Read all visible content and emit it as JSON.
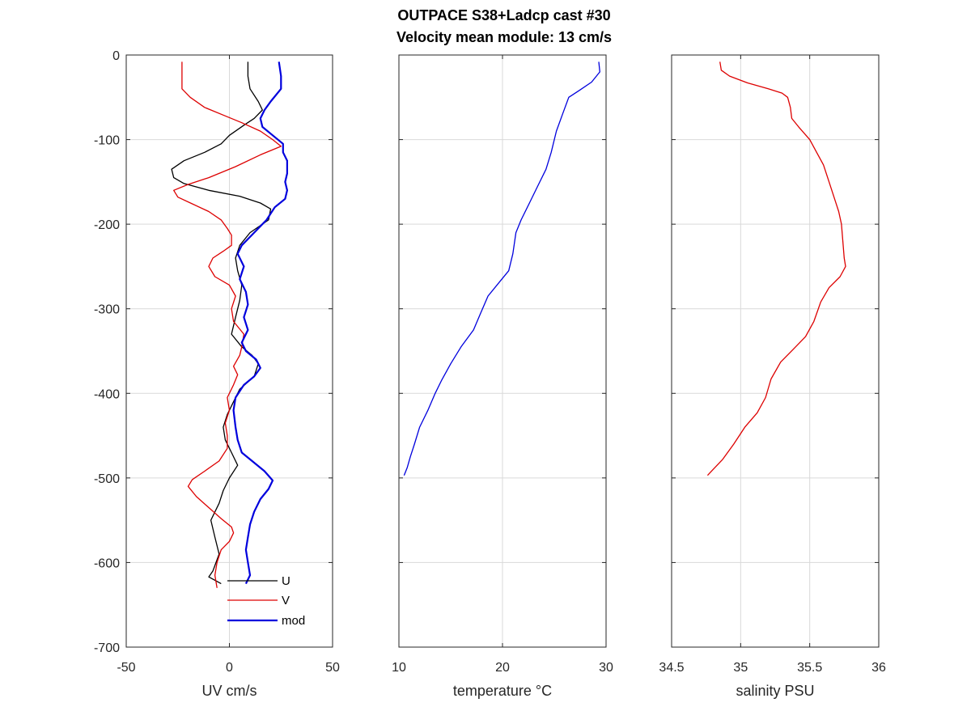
{
  "figure": {
    "title_line1": "OUTPACE S38+Ladcp cast #30",
    "title_line2": "Velocity mean module:  13 cm/s"
  },
  "chart_data": [
    {
      "type": "line",
      "xlabel": "UV cm/s",
      "ylabel": "",
      "xlim": [
        -50,
        50
      ],
      "ylim": [
        -700,
        0
      ],
      "xticks": [
        -50,
        0,
        50
      ],
      "yticks": [
        -700,
        -600,
        -500,
        -400,
        -300,
        -200,
        -100,
        0
      ],
      "grid": true,
      "legend": "bottom-right",
      "series": [
        {
          "name": "U",
          "color": "#000000",
          "width": 1.3,
          "points": [
            [
              9,
              -8
            ],
            [
              9,
              -25
            ],
            [
              10,
              -40
            ],
            [
              14,
              -55
            ],
            [
              16,
              -65
            ],
            [
              12,
              -75
            ],
            [
              7,
              -83
            ],
            [
              0,
              -95
            ],
            [
              -4,
              -105
            ],
            [
              -12,
              -115
            ],
            [
              -22,
              -125
            ],
            [
              -28,
              -135
            ],
            [
              -27,
              -145
            ],
            [
              -22,
              -152
            ],
            [
              -10,
              -160
            ],
            [
              5,
              -167
            ],
            [
              15,
              -175
            ],
            [
              20,
              -182
            ],
            [
              19,
              -195
            ],
            [
              10,
              -210
            ],
            [
              5,
              -225
            ],
            [
              3,
              -240
            ],
            [
              4,
              -255
            ],
            [
              6,
              -272
            ],
            [
              5,
              -290
            ],
            [
              3,
              -310
            ],
            [
              1,
              -330
            ],
            [
              6,
              -345
            ],
            [
              11,
              -355
            ],
            [
              14,
              -365
            ],
            [
              12,
              -380
            ],
            [
              5,
              -395
            ],
            [
              2,
              -410
            ],
            [
              -1,
              -425
            ],
            [
              -3,
              -440
            ],
            [
              -2,
              -455
            ],
            [
              1,
              -470
            ],
            [
              4,
              -485
            ],
            [
              0,
              -500
            ],
            [
              -3,
              -515
            ],
            [
              -5,
              -530
            ],
            [
              -9,
              -550
            ],
            [
              -7,
              -570
            ],
            [
              -5,
              -590
            ],
            [
              -8,
              -610
            ],
            [
              -10,
              -617
            ],
            [
              -4,
              -625
            ]
          ]
        },
        {
          "name": "V",
          "color": "#dd0000",
          "width": 1.3,
          "points": [
            [
              -23,
              -8
            ],
            [
              -23,
              -25
            ],
            [
              -23,
              -40
            ],
            [
              -19,
              -50
            ],
            [
              -12,
              -62
            ],
            [
              -2,
              -72
            ],
            [
              6,
              -80
            ],
            [
              15,
              -90
            ],
            [
              21,
              -100
            ],
            [
              25,
              -108
            ],
            [
              15,
              -118
            ],
            [
              3,
              -132
            ],
            [
              -10,
              -145
            ],
            [
              -20,
              -153
            ],
            [
              -27,
              -160
            ],
            [
              -25,
              -168
            ],
            [
              -18,
              -176
            ],
            [
              -10,
              -185
            ],
            [
              -4,
              -195
            ],
            [
              -1,
              -205
            ],
            [
              1,
              -213
            ],
            [
              1,
              -225
            ],
            [
              -3,
              -232
            ],
            [
              -8,
              -240
            ],
            [
              -10,
              -250
            ],
            [
              -7,
              -262
            ],
            [
              0,
              -272
            ],
            [
              3,
              -285
            ],
            [
              1,
              -300
            ],
            [
              2,
              -315
            ],
            [
              7,
              -330
            ],
            [
              6,
              -345
            ],
            [
              5,
              -355
            ],
            [
              2,
              -368
            ],
            [
              4,
              -378
            ],
            [
              2,
              -390
            ],
            [
              -1,
              -405
            ],
            [
              0,
              -420
            ],
            [
              -2,
              -435
            ],
            [
              -1,
              -450
            ],
            [
              -1,
              -465
            ],
            [
              -5,
              -480
            ],
            [
              -12,
              -492
            ],
            [
              -18,
              -502
            ],
            [
              -20,
              -510
            ],
            [
              -16,
              -522
            ],
            [
              -10,
              -535
            ],
            [
              -4,
              -548
            ],
            [
              1,
              -558
            ],
            [
              2,
              -565
            ],
            [
              0,
              -575
            ],
            [
              -4,
              -585
            ],
            [
              -6,
              -600
            ],
            [
              -7,
              -615
            ],
            [
              -6,
              -630
            ]
          ]
        },
        {
          "name": "mod",
          "color": "#0000dd",
          "width": 2.2,
          "points": [
            [
              24,
              -8
            ],
            [
              25,
              -25
            ],
            [
              25,
              -40
            ],
            [
              20,
              -55
            ],
            [
              17,
              -65
            ],
            [
              15,
              -75
            ],
            [
              16,
              -85
            ],
            [
              21,
              -95
            ],
            [
              26,
              -105
            ],
            [
              26,
              -115
            ],
            [
              28,
              -125
            ],
            [
              28,
              -140
            ],
            [
              27,
              -150
            ],
            [
              28,
              -160
            ],
            [
              27,
              -170
            ],
            [
              22,
              -180
            ],
            [
              18,
              -195
            ],
            [
              12,
              -210
            ],
            [
              6,
              -225
            ],
            [
              4,
              -235
            ],
            [
              7,
              -250
            ],
            [
              5,
              -265
            ],
            [
              8,
              -280
            ],
            [
              9,
              -295
            ],
            [
              7,
              -310
            ],
            [
              9,
              -325
            ],
            [
              6,
              -340
            ],
            [
              8,
              -350
            ],
            [
              13,
              -360
            ],
            [
              15,
              -370
            ],
            [
              12,
              -380
            ],
            [
              7,
              -390
            ],
            [
              3,
              -405
            ],
            [
              2,
              -420
            ],
            [
              3,
              -440
            ],
            [
              4,
              -455
            ],
            [
              6,
              -470
            ],
            [
              11,
              -480
            ],
            [
              17,
              -492
            ],
            [
              21,
              -503
            ],
            [
              19,
              -513
            ],
            [
              15,
              -525
            ],
            [
              12,
              -540
            ],
            [
              10,
              -555
            ],
            [
              9,
              -570
            ],
            [
              8,
              -585
            ],
            [
              9,
              -600
            ],
            [
              10,
              -615
            ],
            [
              8,
              -625
            ]
          ]
        }
      ]
    },
    {
      "type": "line",
      "xlabel": "temperature °C",
      "ylabel": "",
      "xlim": [
        10,
        30
      ],
      "ylim": [
        -700,
        0
      ],
      "xticks": [
        10,
        20,
        30
      ],
      "yticks": [
        -700,
        -600,
        -500,
        -400,
        -300,
        -200,
        -100,
        0
      ],
      "grid": true,
      "series": [
        {
          "name": "",
          "color": "#0000dd",
          "width": 1.3,
          "points": [
            [
              29.3,
              -8
            ],
            [
              29.4,
              -20
            ],
            [
              28.6,
              -32
            ],
            [
              27.4,
              -42
            ],
            [
              26.4,
              -50
            ],
            [
              25.8,
              -70
            ],
            [
              25.2,
              -90
            ],
            [
              24.7,
              -115
            ],
            [
              24.2,
              -135
            ],
            [
              23.4,
              -155
            ],
            [
              22.6,
              -175
            ],
            [
              21.8,
              -195
            ],
            [
              21.3,
              -210
            ],
            [
              21.0,
              -235
            ],
            [
              20.6,
              -255
            ],
            [
              19.6,
              -270
            ],
            [
              18.6,
              -285
            ],
            [
              17.9,
              -305
            ],
            [
              17.2,
              -325
            ],
            [
              16.0,
              -345
            ],
            [
              15.0,
              -365
            ],
            [
              14.1,
              -385
            ],
            [
              13.5,
              -400
            ],
            [
              12.8,
              -420
            ],
            [
              12.0,
              -440
            ],
            [
              11.5,
              -460
            ],
            [
              11.1,
              -475
            ],
            [
              10.8,
              -488
            ],
            [
              10.5,
              -497
            ]
          ]
        }
      ]
    },
    {
      "type": "line",
      "xlabel": "salinity PSU",
      "ylabel": "",
      "xlim": [
        34.5,
        36
      ],
      "ylim": [
        -700,
        0
      ],
      "xticks": [
        34.5,
        35,
        35.5,
        36
      ],
      "yticks": [
        -700,
        -600,
        -500,
        -400,
        -300,
        -200,
        -100,
        0
      ],
      "grid": true,
      "series": [
        {
          "name": "",
          "color": "#dd0000",
          "width": 1.3,
          "points": [
            [
              34.85,
              -8
            ],
            [
              34.86,
              -18
            ],
            [
              34.92,
              -25
            ],
            [
              35.05,
              -33
            ],
            [
              35.2,
              -40
            ],
            [
              35.3,
              -45
            ],
            [
              35.34,
              -50
            ],
            [
              35.36,
              -62
            ],
            [
              35.37,
              -75
            ],
            [
              35.42,
              -85
            ],
            [
              35.5,
              -100
            ],
            [
              35.55,
              -115
            ],
            [
              35.6,
              -130
            ],
            [
              35.64,
              -150
            ],
            [
              35.68,
              -170
            ],
            [
              35.71,
              -185
            ],
            [
              35.73,
              -200
            ],
            [
              35.74,
              -220
            ],
            [
              35.75,
              -240
            ],
            [
              35.76,
              -250
            ],
            [
              35.72,
              -262
            ],
            [
              35.64,
              -275
            ],
            [
              35.58,
              -292
            ],
            [
              35.53,
              -315
            ],
            [
              35.47,
              -333
            ],
            [
              35.38,
              -348
            ],
            [
              35.29,
              -363
            ],
            [
              35.22,
              -383
            ],
            [
              35.18,
              -405
            ],
            [
              35.12,
              -423
            ],
            [
              35.03,
              -440
            ],
            [
              34.95,
              -460
            ],
            [
              34.87,
              -478
            ],
            [
              34.8,
              -490
            ],
            [
              34.76,
              -497
            ]
          ]
        }
      ]
    }
  ]
}
